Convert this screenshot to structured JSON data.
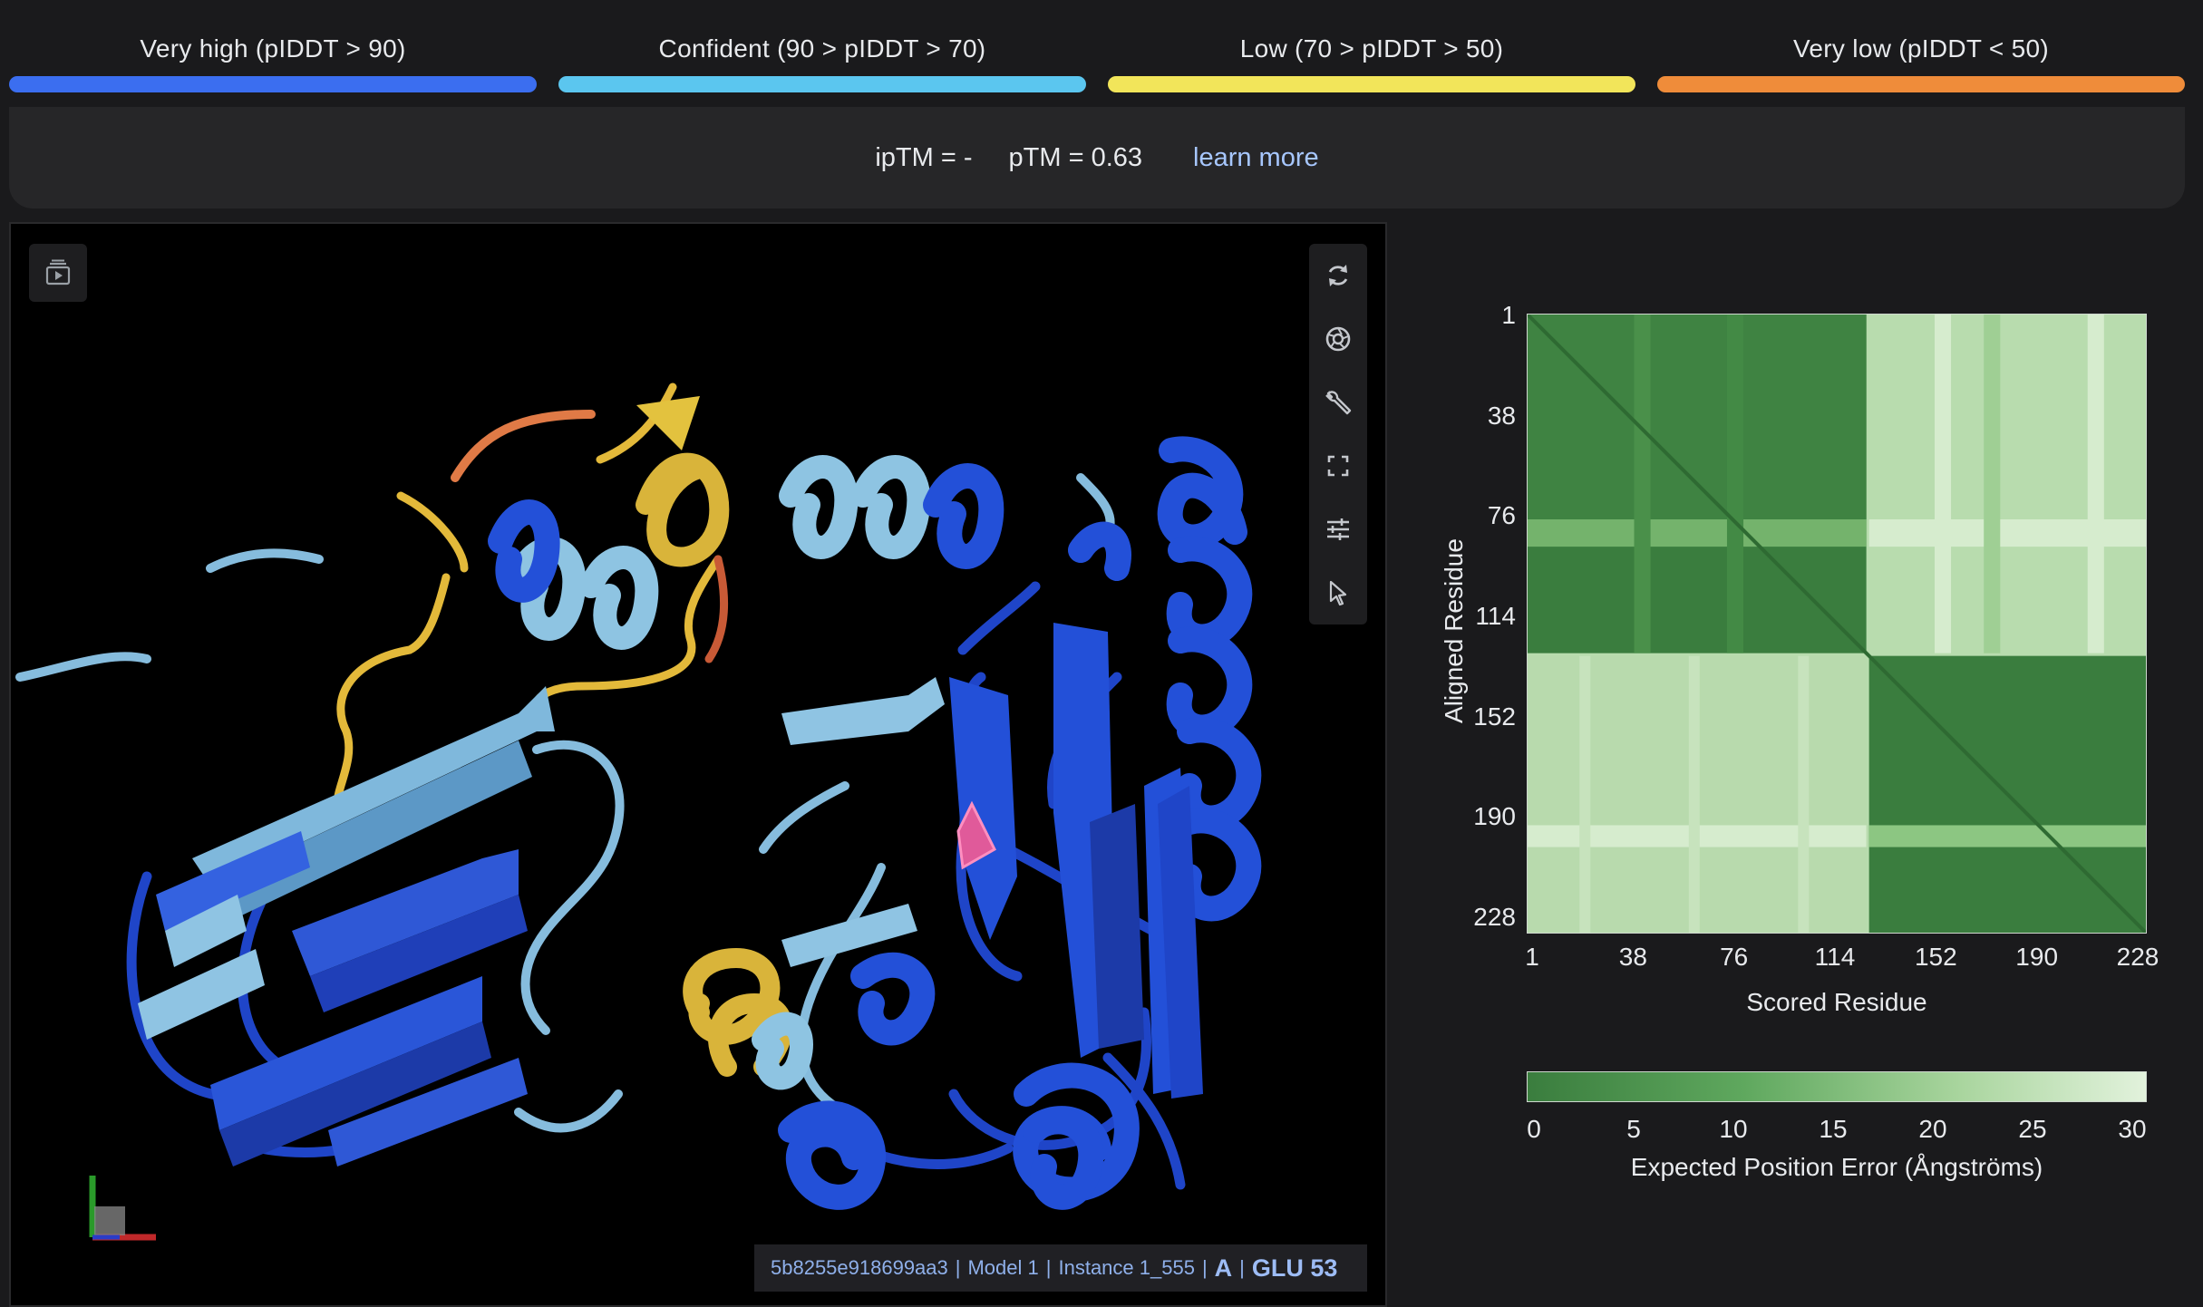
{
  "legend": [
    {
      "label": "Very high (pIDDT > 90)",
      "color": "#3b6ef0"
    },
    {
      "label": "Confident (90 > pIDDT > 70)",
      "color": "#5bc6ef"
    },
    {
      "label": "Low (70 > pIDDT > 50)",
      "color": "#f2e55a"
    },
    {
      "label": "Very low (pIDDT < 50)",
      "color": "#ef8c3a"
    }
  ],
  "scores": {
    "iptm": "ipTM = -",
    "ptm": "pTM = 0.63",
    "learn_more": "learn more"
  },
  "viewer": {
    "left_tool_icon": "play-sequence-icon",
    "tools": [
      "refresh-icon",
      "camera-icon",
      "wrench-icon",
      "fullscreen-icon",
      "sliders-icon",
      "pointer-icon"
    ],
    "info": {
      "id": "5b8255e918699aa3",
      "model": "Model 1",
      "instance": "Instance 1_555",
      "chain": "A",
      "residue": "GLU 53"
    }
  },
  "pae": {
    "ylabel": "Aligned Residue",
    "xlabel": "Scored Residue",
    "ticks": [
      "1",
      "38",
      "76",
      "114",
      "152",
      "190",
      "228"
    ],
    "colorbar_ticks": [
      "0",
      "5",
      "10",
      "15",
      "20",
      "25",
      "30"
    ],
    "colorbar_label": "Expected Position Error (Ångströms)",
    "color_low": "#3a7d3e",
    "color_high": "#e2f2dc"
  }
}
